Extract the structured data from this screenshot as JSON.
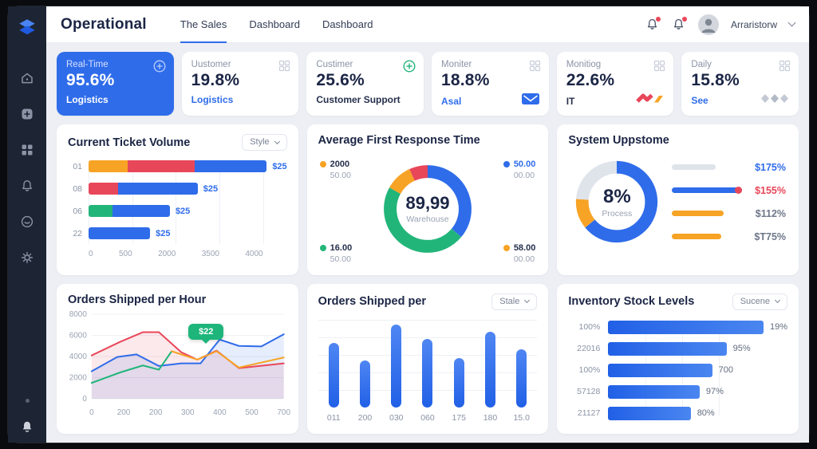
{
  "app": {
    "title": "Operational",
    "tabs": [
      "The Sales",
      "Dashboard",
      "Dashboard"
    ],
    "user": "Arraristorw"
  },
  "sidebar": {
    "items": [
      "home",
      "add",
      "apps",
      "alerts",
      "messages",
      "settings"
    ]
  },
  "colors": {
    "blue": "#2f6cea",
    "green": "#22b57a",
    "orange": "#f7a325",
    "red": "#e8475a",
    "gray": "#dfe3ea"
  },
  "kpis": [
    {
      "label": "Real-Time",
      "value": "95.6%",
      "sub": "Logistics"
    },
    {
      "label": "Uustomer",
      "value": "19.8%",
      "sub": "Logistics"
    },
    {
      "label": "Custimer",
      "value": "25.6%",
      "sub": "Customer Support"
    },
    {
      "label": "Moniter",
      "value": "18.8%",
      "sub": "Asal"
    },
    {
      "label": "Monitiog",
      "value": "22.6%",
      "sub": "IT"
    },
    {
      "label": "Daily",
      "value": "15.8%",
      "sub": "See"
    }
  ],
  "panels": {
    "ticket_volume": {
      "title": "Current Ticket Volume",
      "dropdown": "Style",
      "x_ticks": [
        "0",
        "500",
        "2000",
        "3500",
        "4000"
      ],
      "rows": [
        {
          "label": "01",
          "value": "$25",
          "segments": [
            {
              "color": "orange",
              "pct": 20
            },
            {
              "color": "red",
              "pct": 34
            },
            {
              "color": "blue",
              "pct": 37
            }
          ]
        },
        {
          "label": "08",
          "value": "$25",
          "segments": [
            {
              "color": "red",
              "pct": 15
            },
            {
              "color": "blue",
              "pct": 40
            }
          ]
        },
        {
          "label": "06",
          "value": "$25",
          "segments": [
            {
              "color": "green",
              "pct": 12
            },
            {
              "color": "blue",
              "pct": 29
            }
          ]
        },
        {
          "label": "22",
          "value": "$25",
          "segments": [
            {
              "color": "blue",
              "pct": 31
            }
          ]
        }
      ]
    },
    "response_time": {
      "title": "Average First Response Time",
      "center_value": "89,99",
      "center_label": "Warehouse",
      "segments": [
        {
          "color": "blue",
          "pct": 36
        },
        {
          "color": "green",
          "pct": 47
        },
        {
          "color": "orange",
          "pct": 10
        },
        {
          "color": "red",
          "pct": 7
        }
      ],
      "callouts": {
        "tl": {
          "dot": "orange",
          "line1": "2000",
          "line2": "50.00"
        },
        "tr": {
          "dot": "blue",
          "line1": "50.00",
          "line2": "00.00"
        },
        "bl": {
          "dot": "green",
          "line1": "16.00",
          "line2": "50.00"
        },
        "br": {
          "dot": "orange",
          "line1": "58.00",
          "line2": "00.00"
        }
      }
    },
    "uptime": {
      "title": "System Uppstome",
      "center_value": "8%",
      "center_label": "Process",
      "segments": [
        {
          "color": "blue",
          "pct": 64
        },
        {
          "color": "orange",
          "pct": 12
        },
        {
          "color": "gray",
          "pct": 24
        }
      ],
      "legend": [
        {
          "bar_color": "gray",
          "bar_pct": 62,
          "label": "$175%",
          "label_color": "blue",
          "end_dot": null
        },
        {
          "bar_color": "blue",
          "bar_pct": 100,
          "label": "$155%",
          "label_color": "red",
          "end_dot": "red"
        },
        {
          "bar_color": "orange",
          "bar_pct": 74,
          "label": "$112%",
          "label_color": "muted",
          "end_dot": null
        },
        {
          "bar_color": "orange",
          "bar_pct": 70,
          "label": "$T75%",
          "label_color": "muted",
          "end_dot": null
        }
      ]
    },
    "orders_line": {
      "title": "Orders Shipped per Hour",
      "tooltip": "$22",
      "y_ticks": [
        "8000",
        "6000",
        "4000",
        "2000",
        "0"
      ],
      "x_ticks": [
        "0",
        "200",
        "200",
        "300",
        "400",
        "500",
        "700"
      ],
      "y_max": 8000,
      "x_max": 6,
      "series": [
        {
          "name": "red",
          "color": "red",
          "fill": true,
          "points": [
            [
              0,
              4100
            ],
            [
              0.9,
              5400
            ],
            [
              1.6,
              6300
            ],
            [
              2.1,
              6300
            ],
            [
              2.8,
              4400
            ],
            [
              3.3,
              3700
            ],
            [
              3.9,
              4550
            ],
            [
              4.6,
              2900
            ],
            [
              6,
              3350
            ]
          ]
        },
        {
          "name": "blue",
          "color": "blue",
          "fill": true,
          "points": [
            [
              0,
              2600
            ],
            [
              0.8,
              3950
            ],
            [
              1.4,
              4200
            ],
            [
              2.1,
              3100
            ],
            [
              2.8,
              3350
            ],
            [
              3.4,
              3350
            ],
            [
              4.0,
              5600
            ],
            [
              4.6,
              5000
            ],
            [
              5.3,
              4950
            ],
            [
              6,
              6100
            ]
          ]
        },
        {
          "name": "green",
          "color": "green",
          "fill": false,
          "points": [
            [
              0,
              1500
            ],
            [
              0.9,
              2500
            ],
            [
              1.6,
              3150
            ],
            [
              2.1,
              2750
            ],
            [
              2.5,
              4500
            ]
          ]
        },
        {
          "name": "orange",
          "color": "orange",
          "fill": false,
          "points": [
            [
              2.5,
              4500
            ],
            [
              3.3,
              3700
            ],
            [
              3.9,
              4500
            ],
            [
              4.6,
              2950
            ],
            [
              6,
              3900
            ]
          ]
        }
      ]
    },
    "orders_bar": {
      "title": "Orders Shipped per",
      "dropdown": "Stale",
      "labels": [
        "011",
        "200",
        "030",
        "060",
        "175",
        "180",
        "15.0"
      ],
      "values": [
        72,
        52,
        92,
        76,
        55,
        84,
        65
      ]
    },
    "inventory": {
      "title": "Inventory Stock Levels",
      "dropdown": "Sucene",
      "rows": [
        {
          "label": "100%",
          "pct": 92,
          "value": "19%"
        },
        {
          "label": "22016",
          "pct": 66,
          "value": "95%"
        },
        {
          "label": "100%",
          "pct": 58,
          "value": "700"
        },
        {
          "label": "57128",
          "pct": 51,
          "value": "97%"
        },
        {
          "label": "21127",
          "pct": 46,
          "value": "80%"
        }
      ]
    }
  }
}
